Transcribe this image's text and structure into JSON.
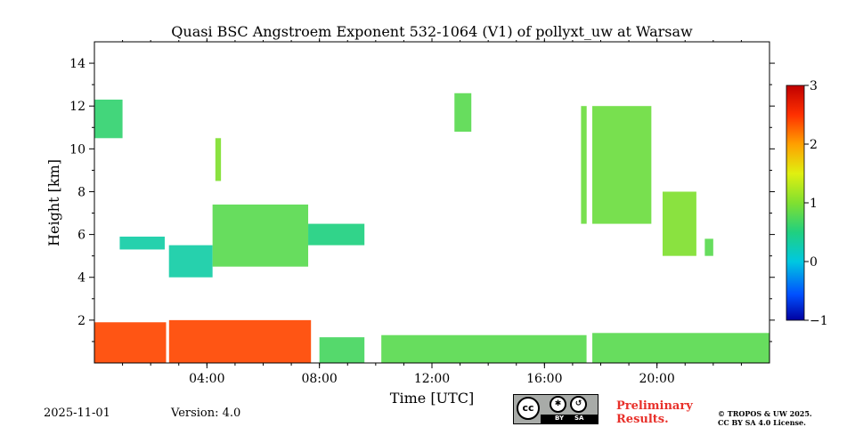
{
  "chart_data": {
    "type": "heatmap",
    "title": "Quasi BSC Angstroem Exponent 532-1064 (V1) of pollyxt_uw at Warsaw",
    "xlabel": "Time [UTC]",
    "ylabel": "Height [km]",
    "x_range_hours": [
      0,
      24
    ],
    "y_range_km": [
      0,
      15
    ],
    "x_ticks": [
      {
        "value": 4,
        "label": "04:00"
      },
      {
        "value": 8,
        "label": "08:00"
      },
      {
        "value": 12,
        "label": "12:00"
      },
      {
        "value": 16,
        "label": "16:00"
      },
      {
        "value": 20,
        "label": "20:00"
      }
    ],
    "y_ticks": [
      {
        "value": 2,
        "label": "2"
      },
      {
        "value": 4,
        "label": "4"
      },
      {
        "value": 6,
        "label": "6"
      },
      {
        "value": 8,
        "label": "8"
      },
      {
        "value": 10,
        "label": "10"
      },
      {
        "value": 12,
        "label": "12"
      },
      {
        "value": 14,
        "label": "14"
      }
    ],
    "colorbar": {
      "range": [
        -1,
        3
      ],
      "colormap": "jet",
      "ticks": [
        {
          "value": 3,
          "label": "3"
        },
        {
          "value": 2,
          "label": "2"
        },
        {
          "value": 1,
          "label": "1"
        },
        {
          "value": 0,
          "label": "0"
        },
        {
          "value": -1,
          "label": "−1"
        }
      ]
    },
    "regions": [
      {
        "name": "boundary layer 00-02.5h",
        "t": [
          0.0,
          2.55
        ],
        "h": [
          0.0,
          1.9
        ],
        "value": 2.4
      },
      {
        "name": "boundary layer 02.5-07.7h",
        "t": [
          2.65,
          7.7
        ],
        "h": [
          0.0,
          2.0
        ],
        "value": 2.4
      },
      {
        "name": "boundary layer 08-09.5h",
        "t": [
          8.0,
          9.6
        ],
        "h": [
          0.0,
          1.2
        ],
        "value": 0.7
      },
      {
        "name": "boundary layer 10.2-17.5h",
        "t": [
          10.2,
          17.5
        ],
        "h": [
          0.0,
          1.3
        ],
        "value": 0.8
      },
      {
        "name": "boundary layer 17.7-24h",
        "t": [
          17.7,
          24.0
        ],
        "h": [
          0.0,
          1.4
        ],
        "value": 0.8
      },
      {
        "name": "elevated layer 00.9-02.5h",
        "t": [
          0.9,
          2.5
        ],
        "h": [
          5.3,
          5.9
        ],
        "value": 0.3
      },
      {
        "name": "elevated layer 02.6-04.2h",
        "t": [
          2.6,
          4.2
        ],
        "h": [
          4.0,
          5.5
        ],
        "value": 0.3
      },
      {
        "name": "elevated layer 04.2-07.6h",
        "t": [
          4.2,
          7.6
        ],
        "h": [
          4.5,
          7.4
        ],
        "value": 0.8
      },
      {
        "name": "elevated layer 07.6-09.6h",
        "t": [
          7.6,
          9.6
        ],
        "h": [
          5.5,
          6.5
        ],
        "value": 0.5
      },
      {
        "name": "cirrus 00-01h",
        "t": [
          0.0,
          1.0
        ],
        "h": [
          10.5,
          12.3
        ],
        "value": 0.6
      },
      {
        "name": "cirrus 04.3-04.5h",
        "t": [
          4.3,
          4.5
        ],
        "h": [
          8.5,
          10.5
        ],
        "value": 1.0
      },
      {
        "name": "cirrus 12.8-13.4h",
        "t": [
          12.8,
          13.4
        ],
        "h": [
          10.8,
          12.6
        ],
        "value": 0.8
      },
      {
        "name": "cirrus 17.3-19.8h",
        "t": [
          17.3,
          19.8
        ],
        "h": [
          6.5,
          12.0
        ],
        "value": 0.9
      },
      {
        "name": "cirrus 20.2-21.4h",
        "t": [
          20.2,
          21.4
        ],
        "h": [
          5.0,
          8.0
        ],
        "value": 1.0
      },
      {
        "name": "layer 21.7-22h",
        "t": [
          21.7,
          22.0
        ],
        "h": [
          5.0,
          5.8
        ],
        "value": 0.8
      }
    ],
    "data_gaps": [
      {
        "t": [
          2.55,
          2.65
        ]
      },
      {
        "t": [
          17.5,
          17.7
        ]
      }
    ]
  },
  "footer": {
    "date": "2025-11-01",
    "version": "Version: 4.0",
    "preliminary_line1": "Preliminary",
    "preliminary_line2": "Results.",
    "license_line1": "© TROPOS & UW 2025.",
    "license_line2": "CC BY SA 4.0 License.",
    "cc_badge": {
      "cc": "cc",
      "by": "BY",
      "sa": "SA"
    }
  }
}
